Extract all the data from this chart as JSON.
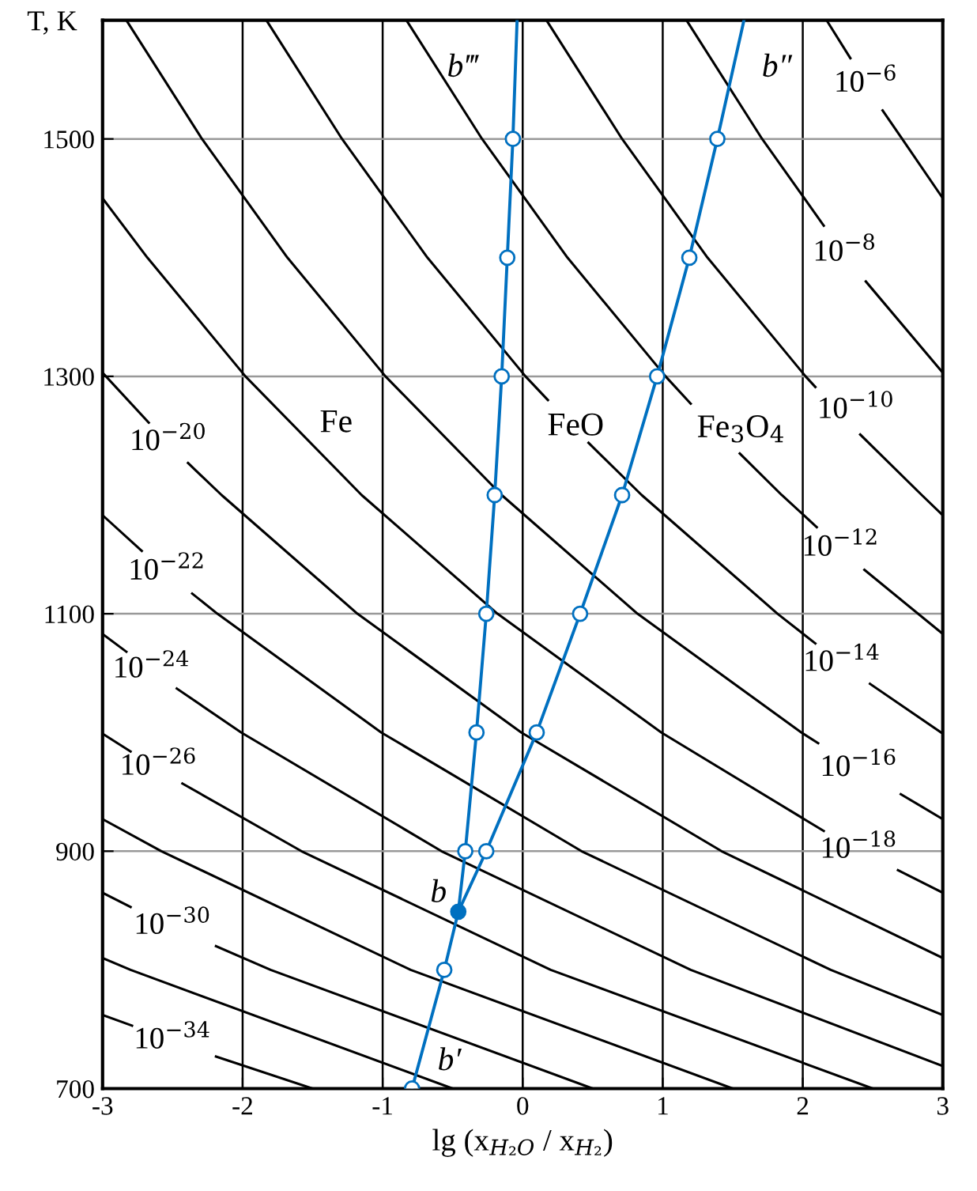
{
  "chart_data": {
    "type": "line",
    "xlabel": "lg (x$_{H₂O}$ / x$_{H₂}$)",
    "ylabel": "T, K",
    "xlim": [
      -3,
      3
    ],
    "ylim": [
      700,
      1600
    ],
    "xticks": [
      -3,
      -2,
      -1,
      0,
      1,
      2,
      3
    ],
    "yticks": [
      700,
      900,
      1100,
      1300,
      1500
    ],
    "grid": true,
    "line_style": "solid",
    "marker": "none",
    "series": [
      {
        "name": "10$^{−6}$",
        "color": "#000000",
        "x": [
          2.17,
          2.34,
          2.45,
          2.57,
          2.71,
          3
        ],
        "values": [
          1600,
          1568,
          null,
          1524,
          1500,
          1450
        ]
      },
      {
        "name": "10$^{−8}$",
        "color": "#000000",
        "x": [
          1.17,
          1.71,
          2.15,
          2.3,
          2.45,
          3
        ],
        "values": [
          1600,
          1500,
          1427,
          null,
          1380,
          1303
        ]
      },
      {
        "name": "10$^{−10}$",
        "color": "#000000",
        "x": [
          0.17,
          0.71,
          1.32,
          2.02,
          2.09,
          2.38,
          2.41,
          2.85,
          3
        ],
        "values": [
          1600,
          1500,
          1400,
          1300,
          1291,
          null,
          1251,
          1200,
          1183
        ]
      },
      {
        "name": "10$^{−12}$",
        "color": "#000000",
        "x": [
          -0.83,
          -0.29,
          0.32,
          1.02,
          1.2,
          1.38,
          1.55,
          1.85,
          2.1,
          2.27,
          2.44,
          3
        ],
        "values": [
          1600,
          1500,
          1400,
          1300,
          1277,
          null,
          1235,
          1200,
          1173,
          null,
          1137,
          1083
        ]
      },
      {
        "name": "10$^{−14}$",
        "color": "#000000",
        "x": [
          -1.83,
          -1.29,
          -0.68,
          0.02,
          0.18,
          0.32,
          0.47,
          0.85,
          1.82,
          2.09,
          2.28,
          2.48,
          3
        ],
        "values": [
          1600,
          1500,
          1400,
          1300,
          1280,
          null,
          1244,
          1200,
          1100,
          1075,
          null,
          1041,
          999
        ]
      },
      {
        "name": "10$^{−16}$",
        "color": "#000000",
        "x": [
          -2.83,
          -2.29,
          -1.68,
          -0.98,
          -0.15,
          0.82,
          1.99,
          2.11,
          2.4,
          2.7,
          3
        ],
        "values": [
          1600,
          1500,
          1400,
          1300,
          1200,
          1100,
          1000,
          991,
          null,
          948,
          927
        ]
      },
      {
        "name": "10$^{−18}$",
        "color": "#000000",
        "x": [
          -3,
          -2.68,
          -1.98,
          -1.15,
          -0.18,
          0.99,
          2.15,
          2.4,
          2.68,
          3
        ],
        "values": [
          1450,
          1400,
          1300,
          1200,
          1100,
          1000,
          917,
          null,
          884,
          865
        ]
      },
      {
        "name": "10$^{−20}$",
        "color": "#000000",
        "x": [
          -3,
          -2.67,
          -2.53,
          -2.39,
          -2.15,
          -1.18,
          -0.01,
          1.42,
          3
        ],
        "values": [
          1303,
          1261,
          null,
          1227,
          1200,
          1100,
          1000,
          900,
          810
        ]
      },
      {
        "name": "10$^{−22}$",
        "color": "#000000",
        "x": [
          -3,
          -2.72,
          -2.54,
          -2.36,
          -2.18,
          -1.01,
          0.42,
          2.2,
          3
        ],
        "values": [
          1183,
          1153,
          null,
          1117,
          1100,
          1000,
          900,
          800,
          762
        ]
      },
      {
        "name": "10$^{−24}$",
        "color": "#000000",
        "x": [
          -3,
          -2.83,
          -2.65,
          -2.47,
          -2.01,
          -0.58,
          1.2,
          3
        ],
        "values": [
          1083,
          1068,
          null,
          1037,
          1000,
          900,
          800,
          719
        ]
      },
      {
        "name": "10$^{−26}$",
        "color": "#000000",
        "x": [
          -3,
          -2.8,
          -2.6,
          -2.43,
          -1.58,
          0.2,
          2.5
        ],
        "values": [
          999,
          984,
          null,
          957,
          900,
          800,
          700
        ]
      },
      {
        "color": "#000000",
        "x": [
          -3,
          -2.58,
          -0.8,
          1.5
        ],
        "values": [
          927,
          900,
          800,
          700
        ]
      },
      {
        "name": "10$^{−30}$",
        "color": "#000000",
        "x": [
          -3,
          -2.8,
          -2.5,
          -2.19,
          -1.8,
          0.5
        ],
        "values": [
          865,
          853,
          null,
          820,
          800,
          700
        ]
      },
      {
        "color": "#000000",
        "x": [
          -3,
          -2.8,
          -0.5
        ],
        "values": [
          810,
          800,
          700
        ]
      },
      {
        "name": "10$^{−34}$",
        "color": "#000000",
        "x": [
          -3,
          -2.79,
          -2.5,
          -2.19,
          -1.5
        ],
        "values": [
          762,
          753,
          null,
          727,
          700
        ]
      },
      {
        "color": "#0070c0",
        "x": [
          -0.79,
          -0.56,
          -0.46
        ],
        "values": [
          700,
          800,
          849
        ]
      },
      {
        "color": "#0070c0",
        "x": [
          -0.46,
          -0.41,
          -0.33,
          -0.26,
          -0.2,
          -0.15,
          -0.11,
          -0.07,
          -0.04
        ],
        "values": [
          849,
          900,
          1000,
          1100,
          1200,
          1300,
          1400,
          1500,
          1600
        ]
      },
      {
        "color": "#0070c0",
        "x": [
          -0.46,
          -0.26,
          0.1,
          0.41,
          0.71,
          0.96,
          1.19,
          1.39,
          1.58
        ],
        "values": [
          849,
          900,
          1000,
          1100,
          1200,
          1300,
          1400,
          1500,
          1600
        ]
      },
      {
        "type": "scatter",
        "marker": "circle",
        "color": "#0070c0",
        "colors": [
          "#ffffff",
          "#ffffff",
          "#ffffff",
          "#ffffff",
          "#ffffff",
          "#ffffff",
          "#ffffff",
          "#ffffff",
          "#ffffff",
          "#ffffff",
          "#ffffff",
          "#ffffff",
          "#ffffff",
          "#ffffff",
          "#ffffff",
          "#ffffff"
        ],
        "x": [
          -0.79,
          -0.56,
          -0.41,
          -0.33,
          -0.26,
          -0.2,
          -0.15,
          -0.11,
          -0.07,
          -0.26,
          0.1,
          0.41,
          0.71,
          0.96,
          1.19,
          1.39
        ],
        "values": [
          700,
          800,
          900,
          1000,
          1100,
          1200,
          1300,
          1400,
          1500,
          900,
          1000,
          1100,
          1200,
          1300,
          1400,
          1500
        ]
      },
      {
        "type": "scatter",
        "marker": "circle",
        "color": "#0070c0",
        "x": [
          -0.46
        ],
        "values": [
          849
        ]
      }
    ],
    "annotations": [
      "Fe",
      "FeO",
      "Fe$_{3}$O$_{4}$",
      {
        "text": "b",
        "x": -0.46,
        "y": 849
      },
      {
        "text": "b′",
        "x": -0.79,
        "y": 700
      },
      {
        "text": "b‴",
        "x": -0.04,
        "y": 1600
      },
      {
        "text": "b″",
        "x": 1.58,
        "y": 1600
      }
    ]
  }
}
